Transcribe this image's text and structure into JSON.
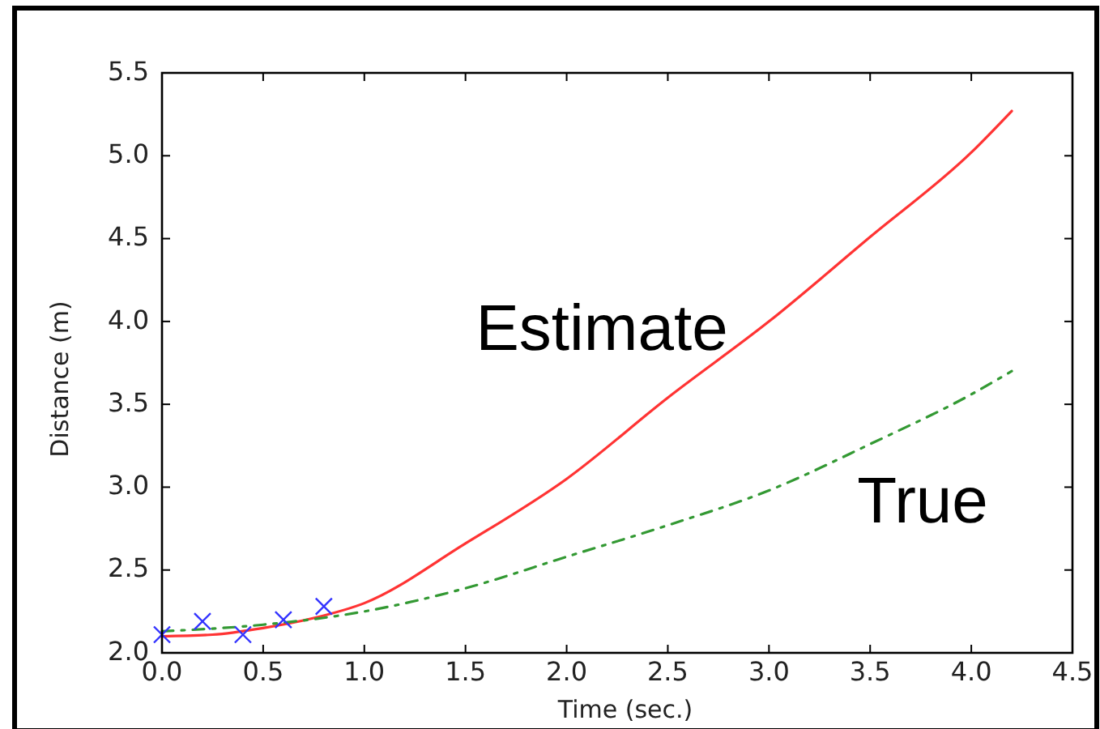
{
  "chart_data": {
    "type": "line",
    "xlabel": "Time (sec.)",
    "ylabel": "Distance (m)",
    "xlim": [
      0,
      4.5
    ],
    "ylim": [
      2.0,
      5.5
    ],
    "xticks": [
      {
        "value": 0,
        "label": "0.0"
      },
      0.5,
      {
        "value": 1,
        "label": "1.0"
      },
      1.5,
      {
        "value": 2,
        "label": "2.0"
      },
      2.5,
      {
        "value": 3,
        "label": "3.0"
      },
      3.5,
      {
        "value": 4,
        "label": "4.0"
      },
      4.5
    ],
    "yticks": [
      {
        "value": 2,
        "label": "2.0"
      },
      2.5,
      {
        "value": 3,
        "label": "3.0"
      },
      3.5,
      {
        "value": 4,
        "label": "4.0"
      },
      4.5,
      {
        "value": 5,
        "label": "5.0"
      },
      5.5
    ],
    "grid": false,
    "series": [
      {
        "name": "Estimate",
        "color": "#ff3333",
        "line_style": "solid",
        "x": [
          0,
          0.25,
          0.5,
          0.75,
          1.0,
          1.5,
          2.0,
          2.5,
          3.0,
          3.5,
          4.0,
          4.2
        ],
        "values": [
          2.1,
          2.11,
          2.15,
          2.21,
          2.3,
          2.66,
          3.05,
          3.54,
          4.0,
          4.51,
          5.02,
          5.27
        ]
      },
      {
        "name": "True",
        "color": "#339933",
        "line_style": "dashed",
        "x": [
          0,
          0.5,
          1.0,
          1.5,
          2.0,
          2.5,
          3.0,
          3.5,
          4.0,
          4.2
        ],
        "values": [
          2.13,
          2.17,
          2.25,
          2.39,
          2.58,
          2.77,
          2.98,
          3.26,
          3.56,
          3.7
        ]
      },
      {
        "type": "scatter",
        "color": "#3333ff",
        "marker": "cross",
        "x": [
          0,
          0.2,
          0.4,
          0.6,
          0.8
        ],
        "values": [
          2.11,
          2.19,
          2.11,
          2.2,
          2.28
        ]
      }
    ]
  }
}
